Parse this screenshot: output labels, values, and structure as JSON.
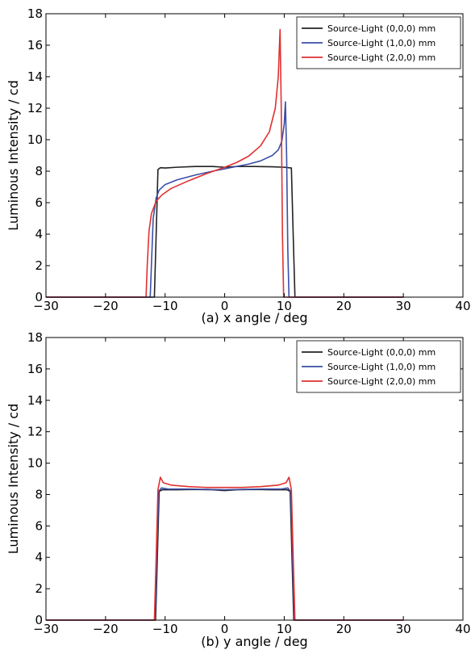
{
  "chart_data": [
    {
      "type": "line",
      "title": "",
      "xlabel": "(a) x angle / deg",
      "ylabel": "Luminous Intensity / cd",
      "xlim": [
        -30,
        40
      ],
      "ylim": [
        0,
        18
      ],
      "xticks": [
        -30,
        -20,
        -10,
        0,
        10,
        20,
        30,
        40
      ],
      "yticks": [
        0,
        2,
        4,
        6,
        8,
        10,
        12,
        14,
        16,
        18
      ],
      "tick_labels_x": [
        "−30",
        "−20",
        "−10",
        "0",
        "10",
        "20",
        "30",
        "40"
      ],
      "tick_labels_y": [
        "0",
        "2",
        "4",
        "6",
        "8",
        "10",
        "12",
        "14",
        "16",
        "18"
      ],
      "grid": false,
      "legend_position": "top-right",
      "series": [
        {
          "name": "Source-Light (0,0,0) mm",
          "color": "#222222",
          "points": [
            [
              -30,
              0
            ],
            [
              -11.8,
              0
            ],
            [
              -11.5,
              4
            ],
            [
              -11.2,
              8.1
            ],
            [
              -10.8,
              8.22
            ],
            [
              -10,
              8.2
            ],
            [
              -8,
              8.25
            ],
            [
              -5,
              8.3
            ],
            [
              -2,
              8.3
            ],
            [
              0,
              8.25
            ],
            [
              2,
              8.3
            ],
            [
              5,
              8.3
            ],
            [
              8,
              8.28
            ],
            [
              10,
              8.25
            ],
            [
              11.2,
              8.2
            ],
            [
              11.5,
              4
            ],
            [
              11.8,
              0
            ],
            [
              30,
              0
            ]
          ]
        },
        {
          "name": "Source-Light (1,0,0) mm",
          "color": "#3a4ea8",
          "points": [
            [
              -30,
              0
            ],
            [
              -12.5,
              0
            ],
            [
              -12.3,
              2
            ],
            [
              -12,
              5
            ],
            [
              -11.5,
              6.3
            ],
            [
              -11,
              6.8
            ],
            [
              -10,
              7.15
            ],
            [
              -8,
              7.45
            ],
            [
              -5,
              7.75
            ],
            [
              -2,
              8.0
            ],
            [
              0,
              8.15
            ],
            [
              2,
              8.3
            ],
            [
              4,
              8.45
            ],
            [
              6,
              8.65
            ],
            [
              8,
              9.0
            ],
            [
              9,
              9.35
            ],
            [
              9.6,
              9.9
            ],
            [
              10,
              11
            ],
            [
              10.2,
              12.4
            ],
            [
              10.4,
              9
            ],
            [
              10.6,
              3
            ],
            [
              10.8,
              0
            ],
            [
              30,
              0
            ]
          ]
        },
        {
          "name": "Source-Light (2,0,0) mm",
          "color": "#e03030",
          "points": [
            [
              -30,
              0
            ],
            [
              -13.2,
              0
            ],
            [
              -13,
              2
            ],
            [
              -12.7,
              4.2
            ],
            [
              -12.3,
              5.3
            ],
            [
              -11.5,
              6.1
            ],
            [
              -10.5,
              6.5
            ],
            [
              -9,
              6.9
            ],
            [
              -6,
              7.4
            ],
            [
              -3,
              7.85
            ],
            [
              0,
              8.25
            ],
            [
              2,
              8.55
            ],
            [
              4,
              8.95
            ],
            [
              6,
              9.6
            ],
            [
              7.5,
              10.5
            ],
            [
              8.5,
              12
            ],
            [
              9,
              14
            ],
            [
              9.3,
              17
            ],
            [
              9.5,
              12
            ],
            [
              9.7,
              4
            ],
            [
              9.9,
              0
            ],
            [
              30,
              0
            ]
          ]
        }
      ]
    },
    {
      "type": "line",
      "title": "",
      "xlabel": "(b) y angle / deg",
      "ylabel": "Luminous Intensity / cd",
      "xlim": [
        -30,
        40
      ],
      "ylim": [
        0,
        18
      ],
      "xticks": [
        -30,
        -20,
        -10,
        0,
        10,
        20,
        30,
        40
      ],
      "yticks": [
        0,
        2,
        4,
        6,
        8,
        10,
        12,
        14,
        16,
        18
      ],
      "tick_labels_x": [
        "−30",
        "−20",
        "−10",
        "0",
        "10",
        "20",
        "30",
        "40"
      ],
      "tick_labels_y": [
        "0",
        "2",
        "4",
        "6",
        "8",
        "10",
        "12",
        "14",
        "16",
        "18"
      ],
      "grid": false,
      "legend_position": "top-right",
      "series": [
        {
          "name": "Source-Light (0,0,0) mm",
          "color": "#222222",
          "points": [
            [
              -30,
              0
            ],
            [
              -11.6,
              0
            ],
            [
              -11.3,
              4
            ],
            [
              -11,
              8.2
            ],
            [
              -10.5,
              8.3
            ],
            [
              -8,
              8.3
            ],
            [
              -5,
              8.32
            ],
            [
              -2,
              8.3
            ],
            [
              0,
              8.25
            ],
            [
              2,
              8.3
            ],
            [
              5,
              8.32
            ],
            [
              8,
              8.3
            ],
            [
              10.5,
              8.3
            ],
            [
              11,
              8.2
            ],
            [
              11.3,
              4
            ],
            [
              11.6,
              0
            ],
            [
              30,
              0
            ]
          ]
        },
        {
          "name": "Source-Light (1,0,0) mm",
          "color": "#3a4ea8",
          "points": [
            [
              -30,
              0
            ],
            [
              -11.7,
              0
            ],
            [
              -11.4,
              4
            ],
            [
              -11.1,
              8.2
            ],
            [
              -10.6,
              8.42
            ],
            [
              -9.5,
              8.35
            ],
            [
              -6,
              8.35
            ],
            [
              -3,
              8.33
            ],
            [
              0,
              8.3
            ],
            [
              3,
              8.33
            ],
            [
              6,
              8.35
            ],
            [
              9.5,
              8.35
            ],
            [
              10.6,
              8.42
            ],
            [
              11.1,
              8.2
            ],
            [
              11.4,
              4
            ],
            [
              11.7,
              0
            ],
            [
              30,
              0
            ]
          ]
        },
        {
          "name": "Source-Light (2,0,0) mm",
          "color": "#e03030",
          "points": [
            [
              -30,
              0
            ],
            [
              -11.8,
              0
            ],
            [
              -11.5,
              4
            ],
            [
              -11.2,
              8.3
            ],
            [
              -10.8,
              9.1
            ],
            [
              -10.3,
              8.75
            ],
            [
              -9,
              8.6
            ],
            [
              -6,
              8.5
            ],
            [
              -3,
              8.45
            ],
            [
              0,
              8.45
            ],
            [
              3,
              8.45
            ],
            [
              6,
              8.5
            ],
            [
              9,
              8.6
            ],
            [
              10.3,
              8.75
            ],
            [
              10.8,
              9.1
            ],
            [
              11.2,
              8.3
            ],
            [
              11.5,
              4
            ],
            [
              11.8,
              0
            ],
            [
              30,
              0
            ]
          ]
        }
      ]
    }
  ]
}
